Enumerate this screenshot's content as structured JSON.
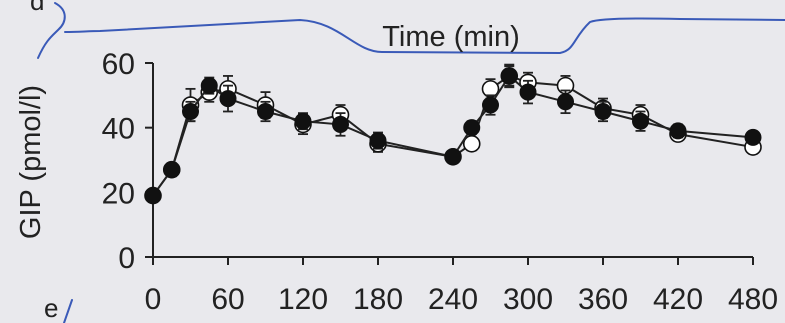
{
  "panel_labels": {
    "upper": "d",
    "lower": "e"
  },
  "chart_data": {
    "type": "line",
    "title": "",
    "xlabel": "Time (min)",
    "ylabel": "GIP (pmol/l)",
    "xlim": [
      0,
      480
    ],
    "ylim": [
      0,
      60
    ],
    "xticks": [
      0,
      60,
      120,
      180,
      240,
      300,
      360,
      420,
      480
    ],
    "yticks": [
      0,
      20,
      40,
      60
    ],
    "grid": false,
    "legend": "none",
    "series": [
      {
        "marker": "filled-circle",
        "color": "#111111",
        "x": [
          0,
          15,
          30,
          45,
          60,
          90,
          120,
          150,
          180,
          240,
          255,
          270,
          285,
          300,
          330,
          360,
          390,
          420,
          480
        ],
        "y": [
          19,
          27,
          45,
          53,
          49,
          45,
          42,
          41,
          36,
          31,
          40,
          47,
          56,
          51,
          48,
          45,
          42,
          39,
          37
        ],
        "err": [
          1.5,
          2,
          3,
          2.5,
          4,
          3,
          2.5,
          3.5,
          2.5,
          1.5,
          2,
          3,
          3.5,
          3.5,
          3.5,
          3,
          3,
          2,
          1.5
        ]
      },
      {
        "marker": "open-circle",
        "color": "#111111",
        "x": [
          0,
          15,
          30,
          45,
          60,
          90,
          120,
          150,
          180,
          240,
          255,
          270,
          285,
          300,
          330,
          360,
          390,
          420,
          480
        ],
        "y": [
          19,
          27,
          47,
          51,
          52,
          47,
          41,
          44,
          35,
          31,
          35,
          52,
          56,
          54,
          53,
          46,
          44,
          38,
          34
        ],
        "err": [
          1.5,
          2,
          5,
          3,
          4,
          4,
          3,
          3,
          2.5,
          1.5,
          2,
          3,
          3,
          3,
          3,
          3,
          3,
          2,
          1.5
        ]
      }
    ]
  }
}
